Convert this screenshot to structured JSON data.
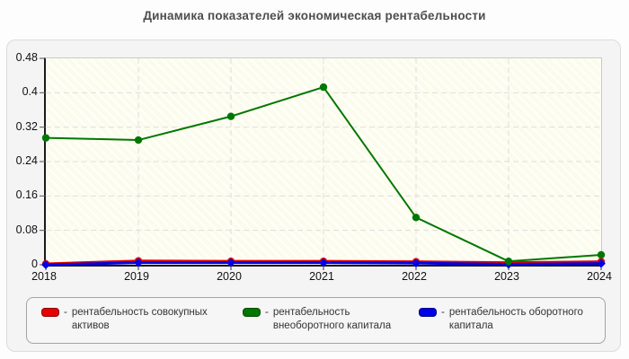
{
  "title": "Динамика показателей экономическая рентабельности",
  "chart_data": {
    "type": "line",
    "title": "Динамика показателей экономическая рентабельности",
    "categories": [
      "2018",
      "2019",
      "2020",
      "2021",
      "2022",
      "2023",
      "2024"
    ],
    "series": [
      {
        "name": "рентабельность совокупных активов",
        "color": "#e60000",
        "edge_color": "#8b0000",
        "marker": "circle",
        "line_width": 3,
        "values": [
          0.002,
          0.009,
          0.008,
          0.008,
          0.007,
          0.005,
          0.007
        ]
      },
      {
        "name": "рентабельность оборотного капитала",
        "color": "#0000e6",
        "edge_color": "#00008b",
        "marker": "diamond",
        "line_width": 3,
        "values": [
          0.0,
          0.005,
          0.005,
          0.005,
          0.004,
          0.001,
          0.003
        ]
      },
      {
        "name": "рентабельность внеоборотного капитала",
        "color": "#007700",
        "edge_color": "#004d00",
        "marker": "circle",
        "line_width": 2,
        "values": [
          0.295,
          0.29,
          0.345,
          0.413,
          0.11,
          0.008,
          0.023
        ]
      }
    ],
    "xlabel": "",
    "ylabel": "",
    "ylim": [
      0,
      0.48
    ],
    "yticks": [
      0,
      0.08,
      0.16,
      0.24,
      0.32,
      0.4,
      0.48
    ],
    "grid": true,
    "grid_color": "#dedede",
    "plot_bg": "#fcfcec",
    "legend_position": "bottom"
  },
  "legend": {
    "items": [
      {
        "dash": "-",
        "label": "рентабельность совокупных активов",
        "color": "#e60000",
        "edge_color": "#8b0000"
      },
      {
        "dash": "-",
        "label": "рентабельность внеоборотного капитала",
        "color": "#007700",
        "edge_color": "#004d00"
      },
      {
        "dash": "-",
        "label": "рентабельность оборотного капитала",
        "color": "#0000e6",
        "edge_color": "#00008b"
      }
    ]
  }
}
